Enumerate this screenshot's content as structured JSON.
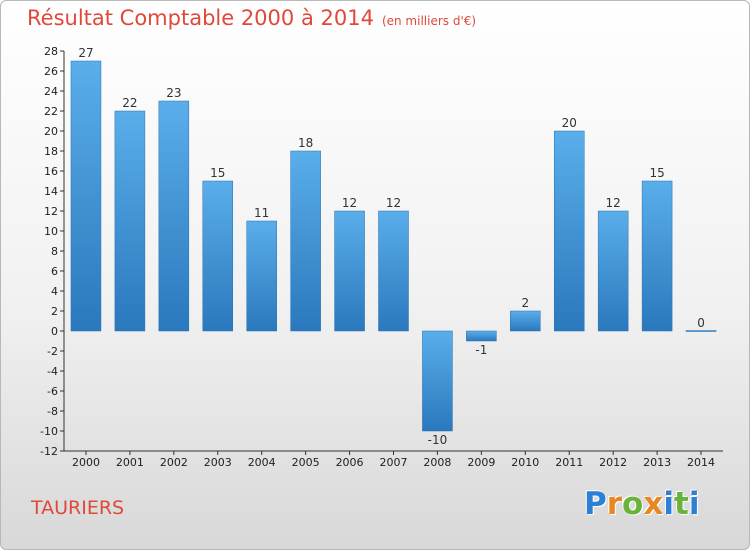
{
  "title": "Résultat Comptable 2000 à 2014",
  "unit_note": "(en milliers d'€)",
  "commune": "TAURIERS",
  "logo": {
    "letters": [
      "P",
      "r",
      "o",
      "x",
      "i",
      "t",
      "i"
    ],
    "colors": [
      "#2b7fd4",
      "#e8861f",
      "#6ab33a",
      "#e8861f",
      "#2b7fd4",
      "#6ab33a",
      "#2b7fd4"
    ]
  },
  "colors": {
    "bar_top": "#5aaeea",
    "bar_bottom": "#2a78bd",
    "title": "#e0483a"
  },
  "chart_data": {
    "type": "bar",
    "title": "Résultat Comptable 2000 à 2014",
    "xlabel": "",
    "ylabel": "",
    "categories": [
      "2000",
      "2001",
      "2002",
      "2003",
      "2004",
      "2005",
      "2006",
      "2007",
      "2008",
      "2009",
      "2010",
      "2011",
      "2012",
      "2013",
      "2014"
    ],
    "values": [
      27,
      22,
      23,
      15,
      11,
      18,
      12,
      12,
      -10,
      -1,
      2,
      20,
      12,
      15,
      0
    ],
    "ylim": [
      -12,
      28
    ],
    "ytick_step": 2,
    "grid": false,
    "legend": "none"
  }
}
